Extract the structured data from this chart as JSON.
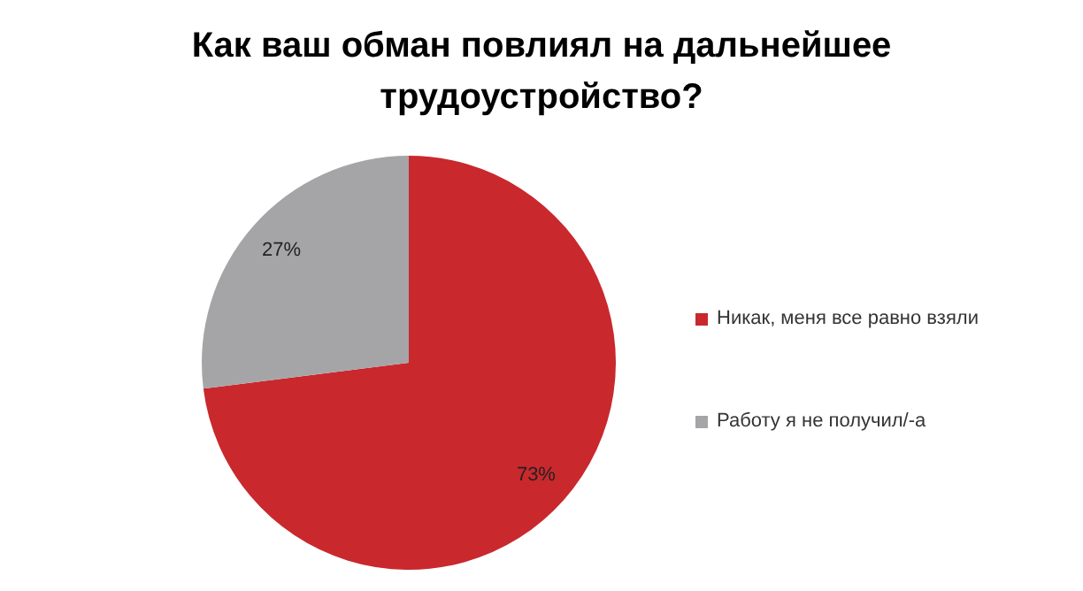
{
  "chart_data": {
    "type": "pie",
    "title": "Как ваш обман повлиял на дальнейшее трудоустройство?",
    "categories": [
      "Никак, меня все равно взяли",
      "Работу я не получил/-а"
    ],
    "values": [
      73,
      27
    ],
    "colors": [
      "#c9282d",
      "#a5a5a7"
    ],
    "value_labels": [
      "73%",
      "27%"
    ],
    "legend": "right"
  }
}
